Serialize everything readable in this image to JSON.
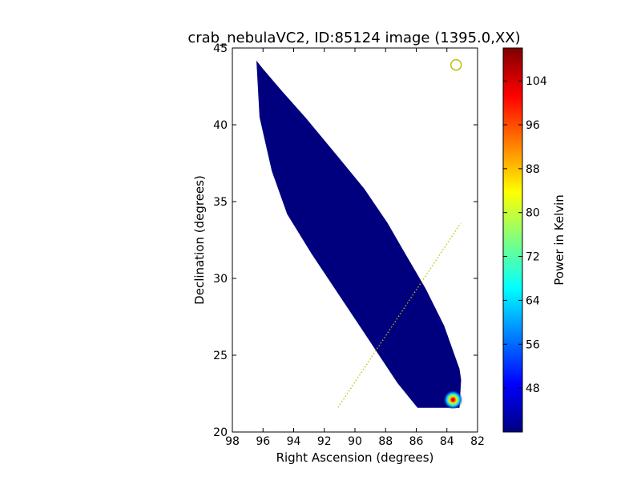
{
  "chart_data": {
    "type": "heatmap",
    "title": "crab_nebulaVC2, ID:85124 image (1395.0,XX)",
    "xlabel": "Right Ascension (degrees)",
    "ylabel": "Declination (degrees)",
    "xlim": [
      98,
      82
    ],
    "ylim": [
      20,
      45
    ],
    "x_ticks": [
      "98",
      "96",
      "94",
      "92",
      "90",
      "88",
      "86",
      "84",
      "82"
    ],
    "y_ticks": [
      "20",
      "25",
      "30",
      "35",
      "40",
      "45"
    ],
    "grid": false,
    "colormap": "jet",
    "colorbar": {
      "label": "Power in Kelvin",
      "range": [
        40,
        110
      ],
      "ticks": [
        "48",
        "56",
        "64",
        "72",
        "80",
        "88",
        "96",
        "104"
      ],
      "stops": [
        "#00007f",
        "#0000ff",
        "#007fff",
        "#00ffff",
        "#7fff7f",
        "#ffff00",
        "#ff7f00",
        "#ff0000",
        "#7f0000"
      ]
    },
    "coverage_polygon": [
      {
        "ra": 96.4,
        "dec": 44.1
      },
      {
        "ra": 96.0,
        "dec": 43.6
      },
      {
        "ra": 94.8,
        "dec": 42.2
      },
      {
        "ra": 93.2,
        "dec": 40.4
      },
      {
        "ra": 91.2,
        "dec": 38.0
      },
      {
        "ra": 89.4,
        "dec": 35.8
      },
      {
        "ra": 87.9,
        "dec": 33.6
      },
      {
        "ra": 86.8,
        "dec": 31.7
      },
      {
        "ra": 85.4,
        "dec": 29.3
      },
      {
        "ra": 84.2,
        "dec": 26.9
      },
      {
        "ra": 83.2,
        "dec": 24.1
      },
      {
        "ra": 83.1,
        "dec": 23.4
      },
      {
        "ra": 83.2,
        "dec": 21.6
      },
      {
        "ra": 85.9,
        "dec": 21.6
      },
      {
        "ra": 87.2,
        "dec": 23.2
      },
      {
        "ra": 89.6,
        "dec": 26.8
      },
      {
        "ra": 92.8,
        "dec": 31.6
      },
      {
        "ra": 94.4,
        "dec": 34.2
      },
      {
        "ra": 95.4,
        "dec": 37.0
      },
      {
        "ra": 96.2,
        "dec": 40.5
      },
      {
        "ra": 96.4,
        "dec": 44.1
      }
    ],
    "coverage_value": 40,
    "hotspot": {
      "ra": 83.6,
      "dec": 22.1,
      "peak_value": 110
    },
    "source_marker": {
      "ra": 83.4,
      "dec": 43.9,
      "color": "#bfbf00"
    },
    "scan_line": {
      "from": {
        "ra": 91.1,
        "dec": 21.6
      },
      "to": {
        "ra": 83.1,
        "dec": 33.6
      },
      "color": "#bfbf00"
    }
  }
}
